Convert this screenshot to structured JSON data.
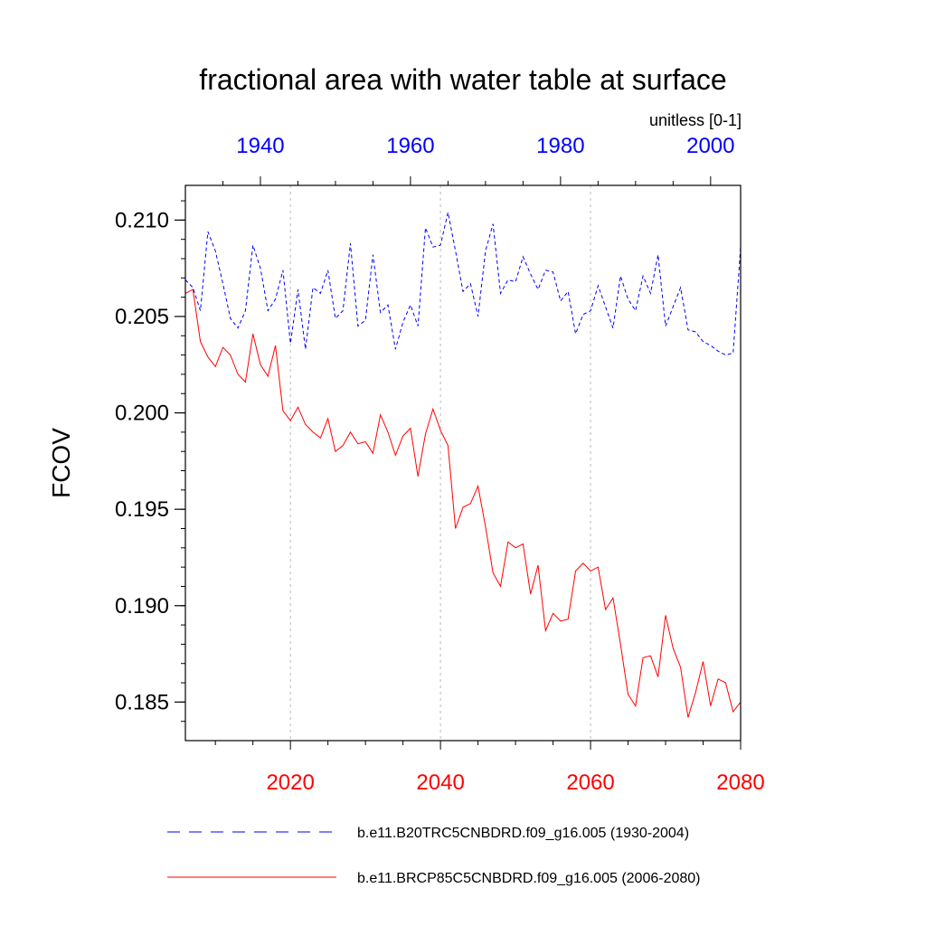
{
  "chart_data": {
    "type": "line",
    "title": "fractional area with water table at surface",
    "units_label": "unitless [0-1]",
    "ylabel": "FCOV",
    "ylim": [
      0.183,
      0.2118
    ],
    "y_ticks": [
      "0.210",
      "0.205",
      "0.200",
      "0.195",
      "0.190",
      "0.185"
    ],
    "y_tick_values": [
      0.21,
      0.205,
      0.2,
      0.195,
      0.19,
      0.185
    ],
    "grid": "dashed vertical lines at major bottom ticks",
    "top_axis": {
      "xlim": [
        1930,
        2004
      ],
      "ticks": [
        1940,
        1960,
        1980,
        2000
      ],
      "tick_labels": [
        "1940",
        "1960",
        "1980",
        "2000"
      ],
      "color": "#0000ff"
    },
    "bottom_axis": {
      "xlim": [
        2006,
        2080
      ],
      "ticks": [
        2020,
        2040,
        2060,
        2080
      ],
      "tick_labels": [
        "2020",
        "2040",
        "2060",
        "2080"
      ],
      "color": "#ff0000"
    },
    "legend_position": "bottom",
    "series": [
      {
        "name": "b.e11.B20TRC5CNBDRD.f09_g16.005 (1930-2004)",
        "axis": "top",
        "color": "#0000ff",
        "dash": "dashed",
        "x_start": 1930,
        "x_end": 2004,
        "values": [
          0.2069,
          0.2065,
          0.2053,
          0.2094,
          0.2084,
          0.2067,
          0.2049,
          0.2044,
          0.2053,
          0.2087,
          0.2075,
          0.2053,
          0.2059,
          0.2074,
          0.2036,
          0.2064,
          0.2033,
          0.2065,
          0.2062,
          0.2074,
          0.2049,
          0.2053,
          0.2088,
          0.2045,
          0.2048,
          0.2082,
          0.2052,
          0.2056,
          0.2033,
          0.2047,
          0.2056,
          0.2045,
          0.2096,
          0.2086,
          0.2087,
          0.2104,
          0.2084,
          0.2063,
          0.2067,
          0.205,
          0.2084,
          0.2098,
          0.2062,
          0.2069,
          0.2068,
          0.2081,
          0.2072,
          0.2064,
          0.2074,
          0.2073,
          0.2058,
          0.2063,
          0.2041,
          0.2051,
          0.2053,
          0.2066,
          0.2055,
          0.2044,
          0.2071,
          0.2059,
          0.2053,
          0.2071,
          0.2062,
          0.2082,
          0.2045,
          0.2055,
          0.2065,
          0.2043,
          0.2042,
          0.2037,
          0.2035,
          0.2032,
          0.203,
          0.2031,
          0.2086
        ]
      },
      {
        "name": "b.e11.BRCP85C5CNBDRD.f09_g16.005 (2006-2080)",
        "axis": "bottom",
        "color": "#ff0000",
        "dash": "solid",
        "x_start": 2006,
        "x_end": 2080,
        "values": [
          0.2062,
          0.2064,
          0.2037,
          0.2029,
          0.2024,
          0.2034,
          0.203,
          0.202,
          0.2016,
          0.2041,
          0.2025,
          0.2019,
          0.2035,
          0.2001,
          0.1996,
          0.2003,
          0.1994,
          0.199,
          0.1987,
          0.1997,
          0.198,
          0.1983,
          0.199,
          0.1984,
          0.1985,
          0.1979,
          0.1999,
          0.199,
          0.1978,
          0.1988,
          0.1992,
          0.1967,
          0.1989,
          0.2002,
          0.1991,
          0.1983,
          0.194,
          0.1951,
          0.1953,
          0.1962,
          0.1941,
          0.1917,
          0.191,
          0.1933,
          0.193,
          0.1932,
          0.1906,
          0.1921,
          0.1887,
          0.1896,
          0.1892,
          0.1893,
          0.1918,
          0.1922,
          0.1918,
          0.192,
          0.1898,
          0.1904,
          0.188,
          0.1854,
          0.1848,
          0.1873,
          0.1874,
          0.1863,
          0.1895,
          0.1878,
          0.1868,
          0.1842,
          0.1855,
          0.1871,
          0.1848,
          0.1862,
          0.186,
          0.1845,
          0.185
        ]
      }
    ]
  }
}
